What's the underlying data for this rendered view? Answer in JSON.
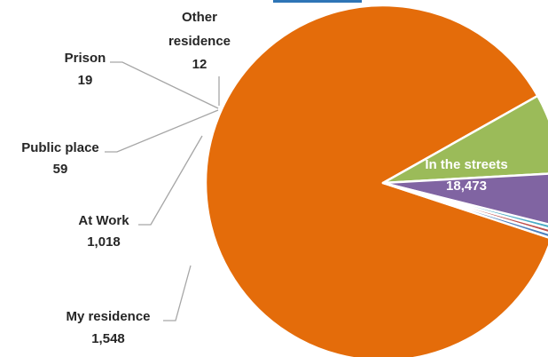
{
  "accent_bar_color": "#2e75b6",
  "chart_data": {
    "type": "pie",
    "title": "",
    "slices": [
      {
        "label": "In the streets",
        "value": 18473,
        "value_label": "18,473",
        "color": "#e46c0a"
      },
      {
        "label": "My residence",
        "value": 1548,
        "value_label": "1,548",
        "color": "#9bbb59"
      },
      {
        "label": "At Work",
        "value": 1018,
        "value_label": "1,018",
        "color": "#8064a2"
      },
      {
        "label": "Public place",
        "value": 59,
        "value_label": "59",
        "color": "#4bacc6"
      },
      {
        "label": "Prison",
        "value": 19,
        "value_label": "19",
        "color": "#c0504d"
      },
      {
        "label": "Other residence",
        "value": 12,
        "value_label": "12",
        "color": "#4f81bd"
      }
    ],
    "legend": "none",
    "slice_separator_color": "#ffffff"
  }
}
